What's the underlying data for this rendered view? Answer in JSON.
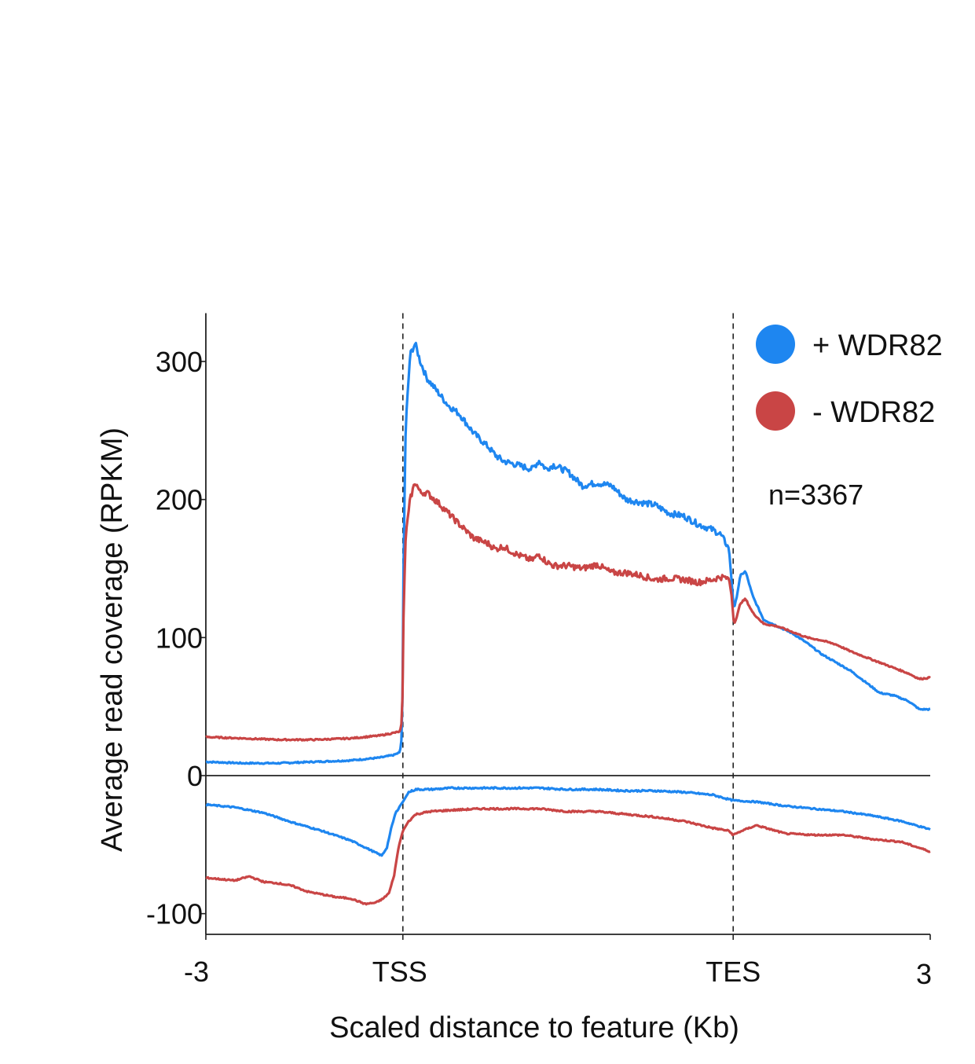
{
  "chart_data": {
    "type": "line",
    "title": "",
    "xlabel": "Scaled distance to feature (Kb)",
    "ylabel": "Average read coverage (RPKM)",
    "xlim": [
      0,
      100
    ],
    "ylim": [
      -115,
      335
    ],
    "yticks": [
      300,
      200,
      100,
      0,
      -100
    ],
    "xticks": [
      {
        "pos": 0,
        "label": "-3"
      },
      {
        "pos": 27.2,
        "label": "TSS"
      },
      {
        "pos": 72.8,
        "label": "TES"
      },
      {
        "pos": 100,
        "label": "3"
      }
    ],
    "feature_lines": [
      27.2,
      72.8
    ],
    "zero_line": 0,
    "annotation": "n=3367",
    "legend": {
      "position": "top-right"
    },
    "colors": {
      "plus": "#1e86f0",
      "minus": "#c94545"
    },
    "series": [
      {
        "name": "+ WDR82",
        "strand": "forward",
        "color": "#1e86f0",
        "x": [
          0,
          5,
          10,
          15,
          20,
          24,
          26,
          26.8,
          27.1,
          27.3,
          27.6,
          28.2,
          28.9,
          29.6,
          30.5,
          32,
          33.5,
          35,
          37,
          39,
          40,
          41,
          43,
          45,
          46,
          47,
          48,
          50,
          52,
          54,
          56,
          58,
          60,
          62,
          64,
          66,
          68,
          70,
          71,
          72.2,
          72.6,
          72.9,
          73.3,
          73.8,
          74.5,
          75.5,
          77,
          79,
          81,
          83,
          85,
          87,
          89,
          91,
          93,
          95,
          97,
          98.5,
          100
        ],
        "values": [
          10,
          9,
          9,
          10,
          11,
          13,
          15,
          17,
          30,
          160,
          255,
          305,
          313,
          300,
          288,
          278,
          268,
          262,
          248,
          238,
          232,
          228,
          225,
          222,
          228,
          222,
          225,
          220,
          210,
          212,
          210,
          200,
          198,
          196,
          190,
          188,
          182,
          178,
          175,
          165,
          140,
          120,
          130,
          145,
          148,
          130,
          113,
          108,
          103,
          96,
          88,
          82,
          76,
          68,
          60,
          58,
          54,
          48,
          48
        ]
      },
      {
        "name": "- WDR82",
        "strand": "forward",
        "color": "#c94545",
        "x": [
          0,
          5,
          10,
          15,
          20,
          24,
          26,
          26.8,
          27.1,
          27.3,
          27.6,
          28.2,
          28.9,
          29.6,
          30.5,
          32,
          33.5,
          35,
          37,
          39,
          40,
          41,
          43,
          45,
          46,
          47,
          48,
          50,
          52,
          54,
          56,
          58,
          60,
          62,
          64,
          66,
          68,
          70,
          71,
          72.2,
          72.6,
          72.9,
          73.3,
          73.8,
          74.5,
          75.5,
          77,
          79,
          81,
          83,
          85,
          87,
          89,
          91,
          93,
          95,
          97,
          98.5,
          100
        ],
        "values": [
          28,
          27,
          26,
          26,
          27,
          29,
          31,
          32,
          40,
          120,
          175,
          200,
          213,
          205,
          205,
          198,
          190,
          182,
          172,
          168,
          164,
          166,
          160,
          156,
          160,
          155,
          152,
          152,
          150,
          153,
          147,
          147,
          145,
          142,
          143,
          142,
          140,
          142,
          144,
          143,
          130,
          110,
          115,
          125,
          128,
          118,
          110,
          108,
          104,
          100,
          98,
          95,
          90,
          86,
          82,
          78,
          74,
          70,
          71
        ]
      },
      {
        "name": "+ WDR82",
        "strand": "reverse",
        "color": "#1e86f0",
        "x": [
          0,
          4,
          8,
          12,
          16,
          20,
          22,
          23.5,
          24.3,
          25,
          25.6,
          26.2,
          26.8,
          27.2,
          28,
          29,
          31,
          34,
          38,
          42,
          46,
          50,
          54,
          58,
          62,
          66,
          70,
          72.8,
          76,
          80,
          84,
          88,
          92,
          96,
          100
        ],
        "values": [
          -21,
          -23,
          -27,
          -34,
          -40,
          -47,
          -52,
          -56,
          -58,
          -52,
          -38,
          -27,
          -22,
          -19,
          -12,
          -10,
          -10,
          -9,
          -9,
          -9,
          -9,
          -10,
          -10,
          -11,
          -11,
          -12,
          -14,
          -18,
          -19,
          -22,
          -24,
          -26,
          -29,
          -33,
          -39
        ]
      },
      {
        "name": "- WDR82",
        "strand": "reverse",
        "color": "#c94545",
        "x": [
          0,
          2,
          4,
          6,
          8,
          10,
          12,
          14,
          16,
          18,
          20,
          22,
          23.5,
          24.5,
          25.3,
          26,
          26.6,
          27.2,
          28,
          29,
          31,
          34,
          38,
          42,
          46,
          50,
          54,
          58,
          62,
          66,
          70,
          72.2,
          72.8,
          74,
          76,
          80,
          84,
          88,
          92,
          96,
          100
        ],
        "values": [
          -74,
          -75,
          -76,
          -73,
          -77,
          -78,
          -80,
          -84,
          -86,
          -88,
          -89,
          -93,
          -92,
          -89,
          -85,
          -72,
          -52,
          -40,
          -33,
          -28,
          -26,
          -25,
          -24,
          -24,
          -24,
          -26,
          -26,
          -28,
          -30,
          -33,
          -38,
          -40,
          -43,
          -40,
          -36,
          -42,
          -43,
          -43,
          -46,
          -48,
          -55
        ]
      }
    ]
  }
}
